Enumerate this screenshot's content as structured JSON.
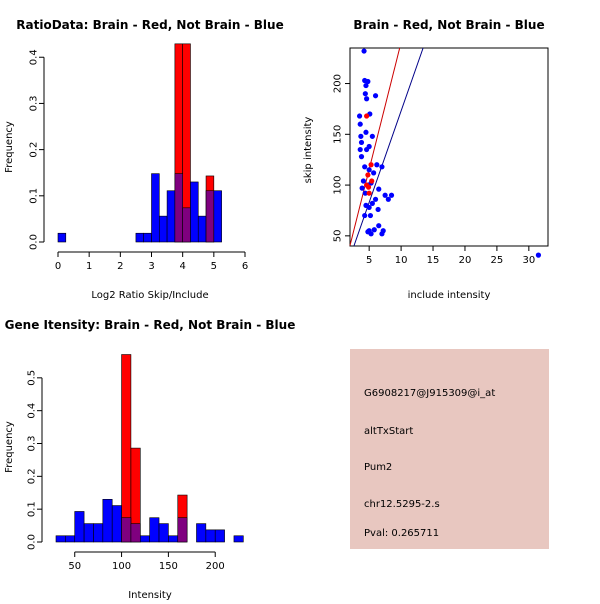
{
  "colors": {
    "red": "#ff0000",
    "blue": "#0000ff",
    "overlap": "#7f007f",
    "panel": "#e8c7c0",
    "pval": "#b00000",
    "line_red": "#cc0000",
    "line_blue": "#000088"
  },
  "info_panel": {
    "probe_id": "G6908217@J915309@i_at",
    "event_type": "altTxStart",
    "gene": "Pum2",
    "locus": "chr12.5295-2.s",
    "pval": "Pval: 0.265711"
  },
  "chart_data": [
    {
      "id": "ratio-hist",
      "type": "histogram",
      "title": "RatioData: Brain - Red, Not Brain - Blue",
      "xlabel": "Log2 Ratio Skip/Include",
      "ylabel": "Frequency",
      "xlim": [
        0,
        6
      ],
      "ylim": [
        0,
        0.42
      ],
      "xticks": [
        0,
        1,
        2,
        3,
        4,
        5,
        6
      ],
      "yticks": [
        0.0,
        0.1,
        0.2,
        0.3,
        0.4
      ],
      "bin_width": 0.25,
      "blue_bins": [
        {
          "x0": 0.0,
          "h": 0.019
        },
        {
          "x0": 2.5,
          "h": 0.019
        },
        {
          "x0": 2.75,
          "h": 0.019
        },
        {
          "x0": 3.0,
          "h": 0.148
        },
        {
          "x0": 3.25,
          "h": 0.056
        },
        {
          "x0": 3.5,
          "h": 0.111
        },
        {
          "x0": 3.75,
          "h": 0.148
        },
        {
          "x0": 4.0,
          "h": 0.074
        },
        {
          "x0": 4.25,
          "h": 0.13
        },
        {
          "x0": 4.5,
          "h": 0.056
        },
        {
          "x0": 4.75,
          "h": 0.111
        },
        {
          "x0": 5.0,
          "h": 0.111
        }
      ],
      "red_bins": [
        {
          "x0": 3.75,
          "h": 0.429
        },
        {
          "x0": 4.0,
          "h": 0.429
        },
        {
          "x0": 4.75,
          "h": 0.143
        }
      ]
    },
    {
      "id": "scatter",
      "type": "scatter",
      "title": "Brain - Red, Not Brain - Blue",
      "xlabel": "include intensity",
      "ylabel": "skip intensity",
      "xlim": [
        2,
        33
      ],
      "ylim": [
        40,
        235
      ],
      "xticks": [
        5,
        10,
        15,
        20,
        25,
        30
      ],
      "yticks": [
        50,
        100,
        150,
        200
      ],
      "blue_points": [
        [
          4.2,
          232
        ],
        [
          4.3,
          203
        ],
        [
          4.5,
          198
        ],
        [
          4.8,
          202
        ],
        [
          4.4,
          190
        ],
        [
          4.6,
          185
        ],
        [
          3.5,
          168
        ],
        [
          3.6,
          160
        ],
        [
          5.1,
          170
        ],
        [
          6.0,
          188
        ],
        [
          3.7,
          148
        ],
        [
          3.8,
          142
        ],
        [
          4.5,
          152
        ],
        [
          5.5,
          148
        ],
        [
          3.6,
          135
        ],
        [
          4.6,
          135
        ],
        [
          3.8,
          128
        ],
        [
          5.0,
          138
        ],
        [
          4.3,
          118
        ],
        [
          5.0,
          115
        ],
        [
          5.7,
          112
        ],
        [
          6.2,
          120
        ],
        [
          7.0,
          118
        ],
        [
          4.1,
          104
        ],
        [
          4.8,
          100
        ],
        [
          5.3,
          102
        ],
        [
          6.5,
          96
        ],
        [
          3.9,
          97
        ],
        [
          4.4,
          92
        ],
        [
          6.0,
          86
        ],
        [
          7.5,
          90
        ],
        [
          8.0,
          86
        ],
        [
          8.5,
          90
        ],
        [
          4.5,
          80
        ],
        [
          5.0,
          78
        ],
        [
          5.5,
          82
        ],
        [
          6.4,
          76
        ],
        [
          4.3,
          70
        ],
        [
          5.2,
          70
        ],
        [
          5.0,
          55
        ],
        [
          5.3,
          52
        ],
        [
          5.8,
          56
        ],
        [
          7.0,
          52
        ],
        [
          7.2,
          55
        ],
        [
          4.8,
          54
        ],
        [
          6.5,
          60
        ],
        [
          31.5,
          31
        ]
      ],
      "red_points": [
        [
          4.6,
          168
        ],
        [
          5.3,
          120
        ],
        [
          4.8,
          110
        ],
        [
          4.6,
          100
        ],
        [
          4.9,
          98
        ],
        [
          5.4,
          104
        ],
        [
          5.0,
          92
        ]
      ],
      "red_line": {
        "intercept": -9.5,
        "slope": 25.0
      },
      "blue_line": {
        "intercept": -7.0,
        "slope": 18.0
      }
    },
    {
      "id": "intensity-hist",
      "type": "histogram",
      "title": "Gene Itensity: Brain - Red, Not Brain - Blue",
      "xlabel": "Intensity",
      "ylabel": "Frequency",
      "xlim": [
        30,
        235
      ],
      "ylim": [
        0,
        0.6
      ],
      "xticks": [
        50,
        100,
        150,
        200
      ],
      "yticks": [
        0.0,
        0.1,
        0.2,
        0.3,
        0.4,
        0.5
      ],
      "bin_width": 10,
      "blue_bins": [
        {
          "x0": 30,
          "h": 0.019
        },
        {
          "x0": 40,
          "h": 0.019
        },
        {
          "x0": 50,
          "h": 0.093
        },
        {
          "x0": 60,
          "h": 0.056
        },
        {
          "x0": 70,
          "h": 0.056
        },
        {
          "x0": 80,
          "h": 0.13
        },
        {
          "x0": 90,
          "h": 0.111
        },
        {
          "x0": 100,
          "h": 0.074
        },
        {
          "x0": 110,
          "h": 0.056
        },
        {
          "x0": 120,
          "h": 0.019
        },
        {
          "x0": 130,
          "h": 0.074
        },
        {
          "x0": 140,
          "h": 0.056
        },
        {
          "x0": 150,
          "h": 0.019
        },
        {
          "x0": 160,
          "h": 0.074
        },
        {
          "x0": 170,
          "h": 0.0
        },
        {
          "x0": 180,
          "h": 0.056
        },
        {
          "x0": 190,
          "h": 0.037
        },
        {
          "x0": 200,
          "h": 0.037
        },
        {
          "x0": 220,
          "h": 0.019
        }
      ],
      "red_bins": [
        {
          "x0": 100,
          "h": 0.571
        },
        {
          "x0": 110,
          "h": 0.286
        },
        {
          "x0": 160,
          "h": 0.143
        }
      ]
    }
  ]
}
